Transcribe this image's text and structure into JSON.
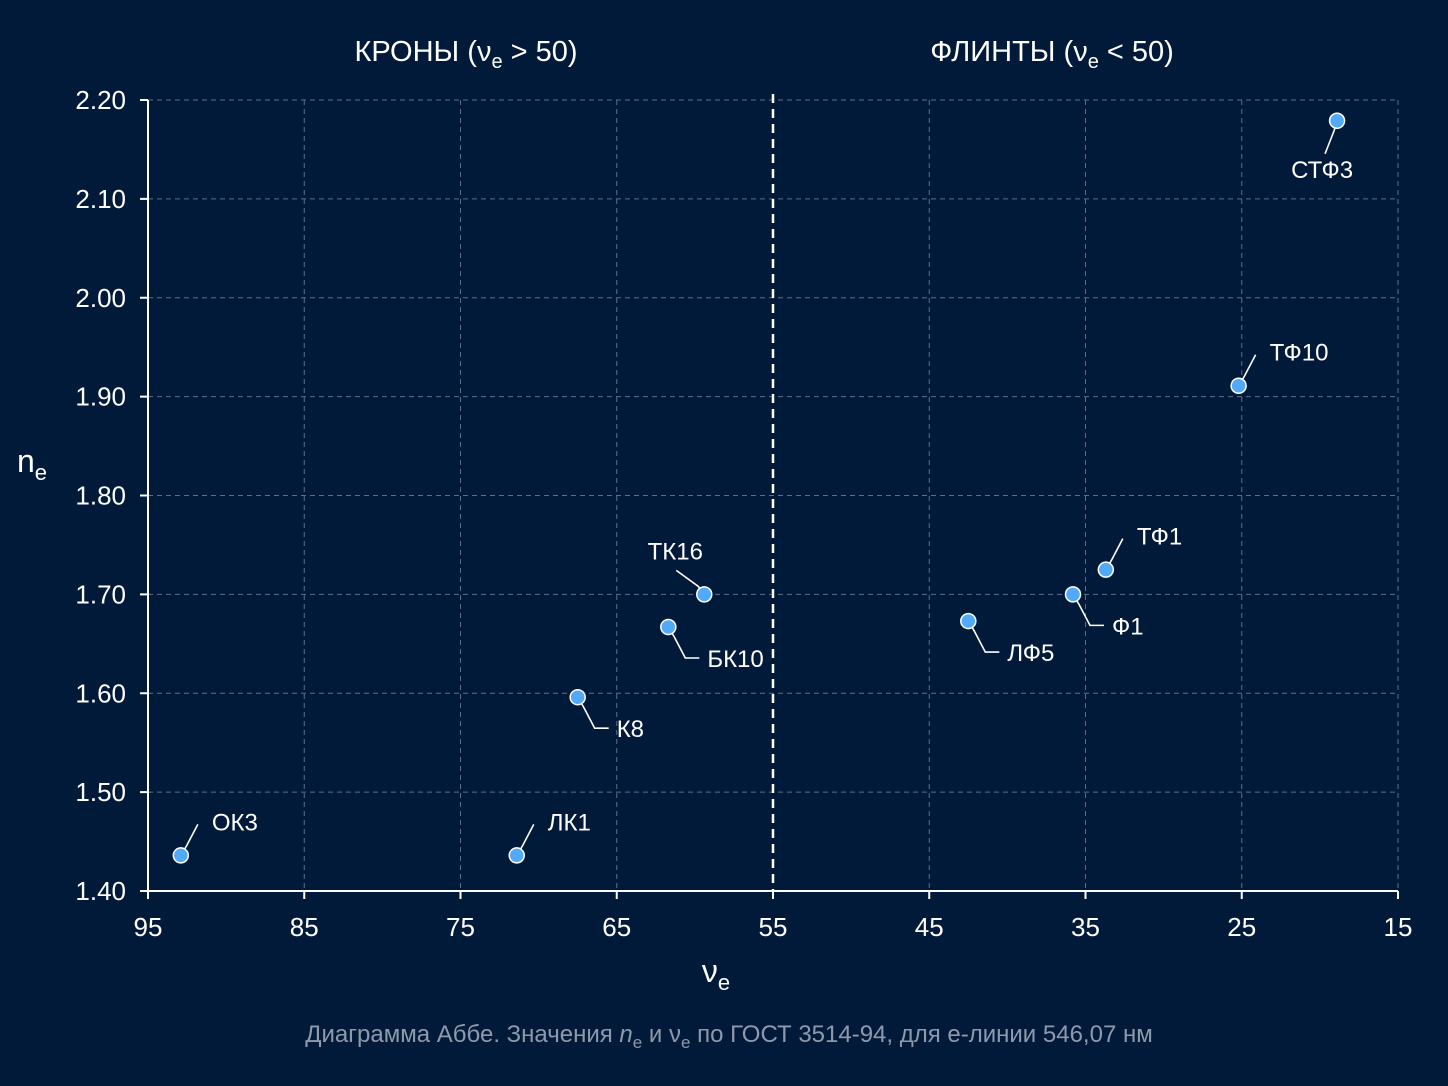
{
  "chart_data": {
    "type": "scatter",
    "title": "",
    "xlabel": "ν",
    "xlabel_sub": "e",
    "ylabel": "n",
    "ylabel_sub": "e",
    "xlim": [
      95,
      15
    ],
    "ylim": [
      1.4,
      2.2
    ],
    "x_reversed": true,
    "x_ticks": [
      "95",
      "85",
      "75",
      "65",
      "55",
      "45",
      "35",
      "25",
      "15"
    ],
    "y_ticks": [
      "1.40",
      "1.50",
      "1.60",
      "1.70",
      "1.80",
      "1.90",
      "2.00",
      "2.10",
      "2.20"
    ],
    "grid": true,
    "divider_x": 55,
    "regions": [
      {
        "pre": "КРОНЫ (ν",
        "sub": "e",
        "post": " > 50)"
      },
      {
        "pre": "ФЛИНТЫ (ν",
        "sub": "e",
        "post": " < 50)"
      }
    ],
    "points": [
      {
        "label": "ОК3",
        "x": 92.9,
        "y": 1.436
      },
      {
        "label": "ЛК1",
        "x": 71.4,
        "y": 1.436
      },
      {
        "label": "К8",
        "x": 67.5,
        "y": 1.596
      },
      {
        "label": "БК10",
        "x": 61.7,
        "y": 1.667
      },
      {
        "label": "ТК16",
        "x": 59.4,
        "y": 1.7
      },
      {
        "label": "ЛФ5",
        "x": 42.5,
        "y": 1.673
      },
      {
        "label": "Ф1",
        "x": 35.8,
        "y": 1.7
      },
      {
        "label": "ТФ1",
        "x": 33.7,
        "y": 1.725
      },
      {
        "label": "ТФ10",
        "x": 25.2,
        "y": 1.911
      },
      {
        "label": "СТФ3",
        "x": 18.9,
        "y": 2.179
      }
    ],
    "colors": {
      "background": "#021a3a",
      "point": "#52a9f7",
      "point_outline": "#ffffff",
      "grid": "#5d6f87",
      "axis": "#ffffff"
    }
  },
  "caption": {
    "before": "Диаграмма Аббе. Значения ",
    "n": "n",
    "n_sub": "e",
    "middle": " и ",
    "v": "ν",
    "v_sub": "e",
    "after": " по ГОСТ 3514-94, для е-линии 546,07 нм"
  }
}
